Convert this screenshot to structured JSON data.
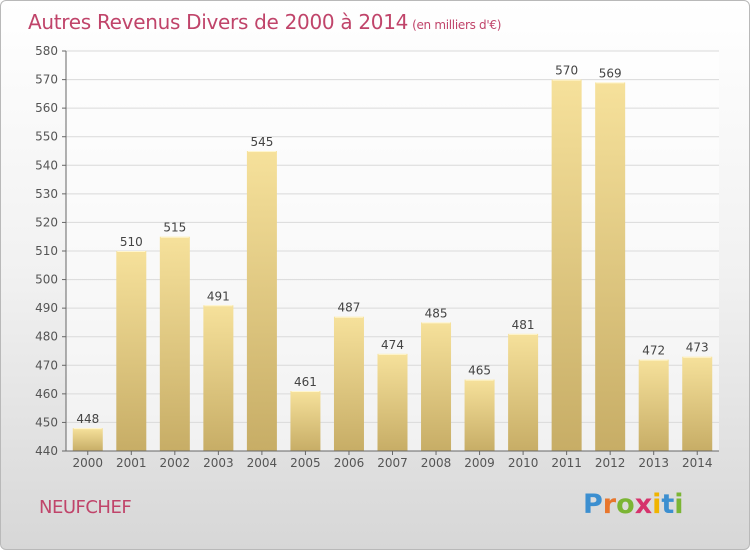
{
  "title": "Autres Revenus Divers de 2000 à 2014",
  "subtitle": "(en milliers d'€)",
  "place": "NEUFCHEF",
  "brand": {
    "name": "Proxiti",
    "letters": [
      "P",
      "r",
      "o",
      "x",
      "i",
      "t",
      "i"
    ],
    "colors": [
      "#3c8fd0",
      "#e8762c",
      "#7bb534",
      "#d6336c",
      "#f0b400",
      "#3c8fd0",
      "#7bb534"
    ]
  },
  "colors": {
    "title": "#c0446a",
    "bar_light": "#f6e19b",
    "bar_dark": "#c7ad66",
    "grid": "#dadada",
    "axis": "#666666"
  },
  "chart_data": {
    "type": "bar",
    "categories": [
      "2000",
      "2001",
      "2002",
      "2003",
      "2004",
      "2005",
      "2006",
      "2007",
      "2008",
      "2009",
      "2010",
      "2011",
      "2012",
      "2013",
      "2014"
    ],
    "values": [
      448,
      510,
      515,
      491,
      545,
      461,
      487,
      474,
      485,
      465,
      481,
      570,
      569,
      472,
      473
    ],
    "ylim": [
      440,
      580
    ],
    "yticks": [
      440,
      450,
      460,
      470,
      480,
      490,
      500,
      510,
      520,
      530,
      540,
      550,
      560,
      570,
      580
    ],
    "grid": true
  }
}
